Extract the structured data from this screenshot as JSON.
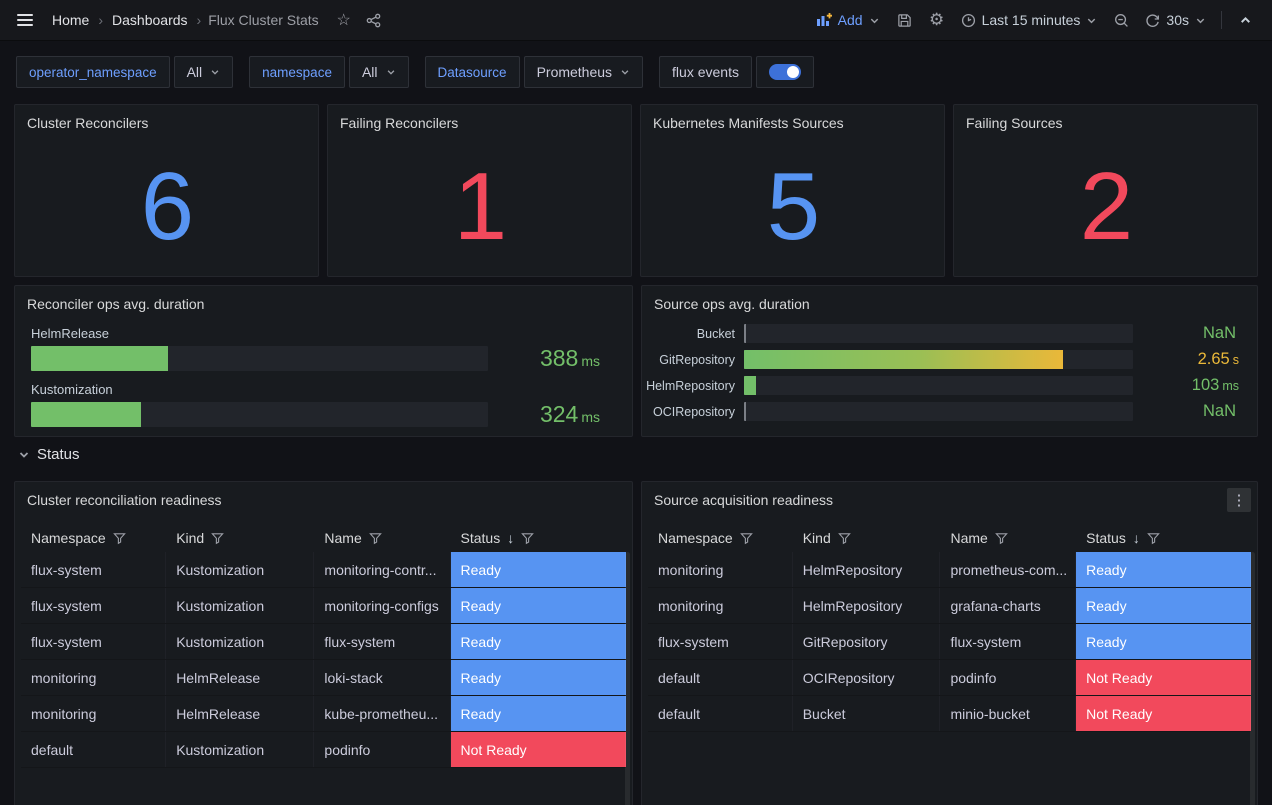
{
  "topbar": {
    "breadcrumbs": {
      "home": "Home",
      "dashboards": "Dashboards",
      "current": "Flux Cluster Stats"
    },
    "add_label": "Add",
    "time_range_label": "Last 15 minutes",
    "refresh_interval_label": "30s"
  },
  "filters": {
    "operator_namespace": {
      "label": "operator_namespace",
      "value": "All"
    },
    "namespace": {
      "label": "namespace",
      "value": "All"
    },
    "datasource": {
      "label": "Datasource",
      "value": "Prometheus"
    },
    "flux_events": {
      "label": "flux events",
      "enabled": true
    }
  },
  "stat_panels": [
    {
      "title": "Cluster Reconcilers",
      "value": "6",
      "color": "#5794F2"
    },
    {
      "title": "Failing Reconcilers",
      "value": "1",
      "color": "#F2495C"
    },
    {
      "title": "Kubernetes Manifests Sources",
      "value": "5",
      "color": "#5794F2"
    },
    {
      "title": "Failing Sources",
      "value": "2",
      "color": "#F2495C"
    }
  ],
  "reconciler_gauge": {
    "title": "Reconciler ops avg. duration",
    "rows": [
      {
        "label": "HelmRelease",
        "value": "388",
        "unit": "ms",
        "fill_pct": 30
      },
      {
        "label": "Kustomization",
        "value": "324",
        "unit": "ms",
        "fill_pct": 24
      }
    ]
  },
  "source_gauge": {
    "title": "Source ops avg. duration",
    "rows": [
      {
        "label": "Bucket",
        "value": "NaN",
        "unit": "",
        "fill_pct": 0
      },
      {
        "label": "GitRepository",
        "value": "2.65",
        "unit": "s",
        "fill_pct": 82
      },
      {
        "label": "HelmRepository",
        "value": "103",
        "unit": "ms",
        "fill_pct": 3
      },
      {
        "label": "OCIRepository",
        "value": "NaN",
        "unit": "",
        "fill_pct": 0
      }
    ]
  },
  "status_section": {
    "label": "Status"
  },
  "cluster_table": {
    "title": "Cluster reconciliation readiness",
    "columns": {
      "namespace": "Namespace",
      "kind": "Kind",
      "name": "Name",
      "status": "Status"
    },
    "sort_arrow": "↓",
    "rows": [
      {
        "namespace": "flux-system",
        "kind": "Kustomization",
        "name": "monitoring-contr...",
        "status": "Ready"
      },
      {
        "namespace": "flux-system",
        "kind": "Kustomization",
        "name": "monitoring-configs",
        "status": "Ready"
      },
      {
        "namespace": "flux-system",
        "kind": "Kustomization",
        "name": "flux-system",
        "status": "Ready"
      },
      {
        "namespace": "monitoring",
        "kind": "HelmRelease",
        "name": "loki-stack",
        "status": "Ready"
      },
      {
        "namespace": "monitoring",
        "kind": "HelmRelease",
        "name": "kube-prometheu...",
        "status": "Ready"
      },
      {
        "namespace": "default",
        "kind": "Kustomization",
        "name": "podinfo",
        "status": "Not Ready"
      }
    ]
  },
  "source_table": {
    "title": "Source acquisition readiness",
    "columns": {
      "namespace": "Namespace",
      "kind": "Kind",
      "name": "Name",
      "status": "Status"
    },
    "sort_arrow": "↓",
    "kebab": "⋮",
    "rows": [
      {
        "namespace": "monitoring",
        "kind": "HelmRepository",
        "name": "prometheus-com...",
        "status": "Ready"
      },
      {
        "namespace": "monitoring",
        "kind": "HelmRepository",
        "name": "grafana-charts",
        "status": "Ready"
      },
      {
        "namespace": "flux-system",
        "kind": "GitRepository",
        "name": "flux-system",
        "status": "Ready"
      },
      {
        "namespace": "default",
        "kind": "OCIRepository",
        "name": "podinfo",
        "status": "Not Ready"
      },
      {
        "namespace": "default",
        "kind": "Bucket",
        "name": "minio-bucket",
        "status": "Not Ready"
      }
    ]
  },
  "colors": {
    "ready": "#5794F2",
    "not_ready": "#F2495C",
    "gauge_green": "#73BF69",
    "gauge_yellow": "#EAB839"
  }
}
